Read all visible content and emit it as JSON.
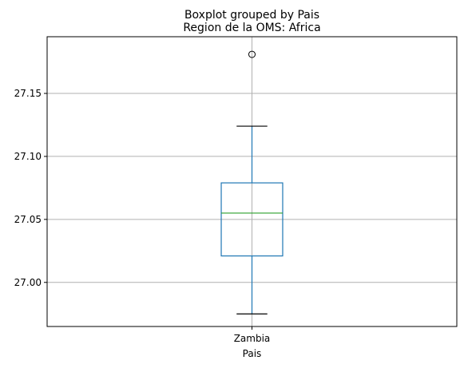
{
  "chart_data": {
    "type": "boxplot",
    "title": "Boxplot grouped by Pais",
    "subtitle": "Region de la OMS: Africa",
    "xlabel": "Pais",
    "ylabel": "",
    "categories": [
      "Zambia"
    ],
    "ylim": [
      26.965,
      27.195
    ],
    "yticks": [
      27.0,
      27.05,
      27.1,
      27.15
    ],
    "ytick_labels": [
      "27.00",
      "27.05",
      "27.10",
      "27.15"
    ],
    "grid": true,
    "boxes": [
      {
        "category": "Zambia",
        "whisker_low": 26.975,
        "q1": 27.021,
        "median": 27.055,
        "q3": 27.079,
        "whisker_high": 27.124,
        "outliers": [
          27.181
        ]
      }
    ],
    "colors": {
      "box": "#1f77b4",
      "median": "#2ca02c",
      "whisker_cap": "#000000",
      "grid": "#b0b0b0"
    }
  }
}
